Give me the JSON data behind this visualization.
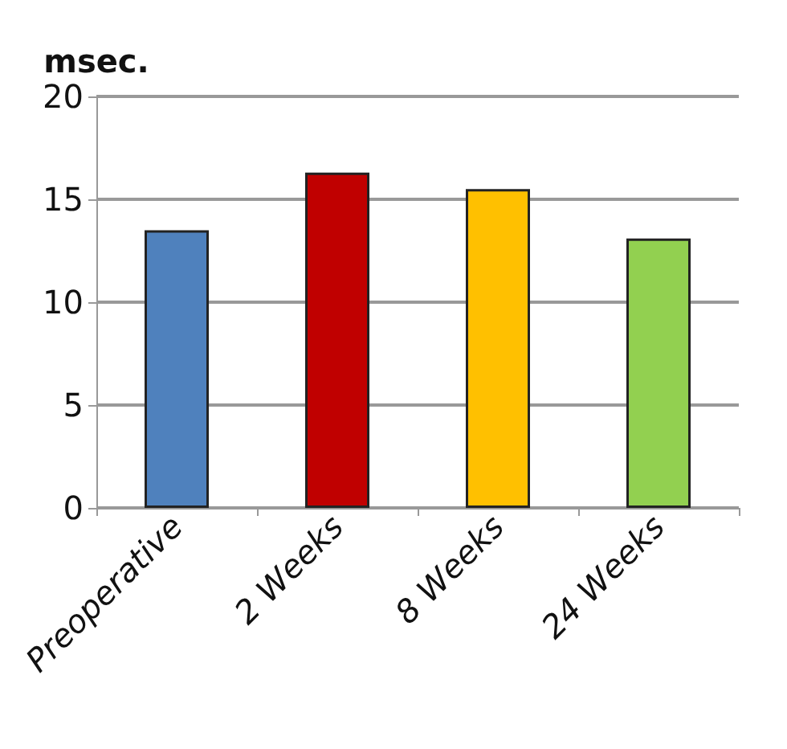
{
  "chart_data": {
    "type": "bar",
    "ylabel": "msec.",
    "categories": [
      "Preoperative",
      "2 Weeks",
      "8 Weeks",
      "24 Weeks"
    ],
    "values": [
      13.5,
      16.3,
      15.5,
      13.1
    ],
    "colors": [
      "#4f81bd",
      "#c00000",
      "#ffc000",
      "#92d050"
    ],
    "ylim": [
      0,
      20
    ],
    "yticks": [
      0,
      5,
      10,
      15,
      20
    ],
    "grid": "y"
  }
}
